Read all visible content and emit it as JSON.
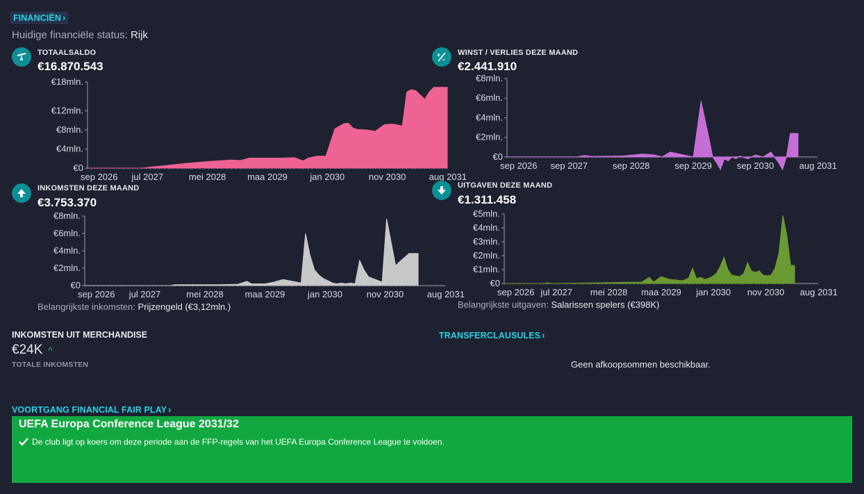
{
  "header": {
    "title": "FINANCIËN"
  },
  "status": {
    "label": "Huidige financiële status:",
    "value": "Rijk"
  },
  "colors": {
    "balance": "#ef6394",
    "profit": "#c36fd6",
    "income": "#c8c8c8",
    "expenses": "#6a9a32",
    "accent": "#27d3e8",
    "ffp_box": "#11a841"
  },
  "panels": {
    "balance": {
      "label": "TOTAALSALDO",
      "value": "€16.870.543",
      "icon": "scale-icon"
    },
    "profit": {
      "label": "WINST / VERLIES DEZE MAAND",
      "value": "€2.441.910",
      "icon": "plus-minus-icon"
    },
    "income": {
      "label": "INKOMSTEN DEZE MAAND",
      "value": "€3.753.370",
      "icon": "arrow-up-icon",
      "sub_label": "Belangrijkste inkomsten:",
      "sub_value": "Prijzengeld (€3,12mln.)"
    },
    "expenses": {
      "label": "UITGAVEN DEZE MAAND",
      "value": "€1.311.458",
      "icon": "arrow-down-icon",
      "sub_label": "Belangrijkste uitgaven:",
      "sub_value": "Salarissen spelers (€398K)"
    }
  },
  "merchandise": {
    "title": "INKOMSTEN UIT MERCHANDISE",
    "value": "€24K",
    "sub": "TOTALE INKOMSTEN"
  },
  "transfer": {
    "title": "TRANSFERCLAUSULES",
    "message": "Geen afkoopsommen beschikbaar."
  },
  "ffp": {
    "title": "VOORTGANG FINANCIAL FAIR PLAY",
    "competition": "UEFA Europa Conference League 2031/32",
    "message": "De club ligt op koers om deze periode aan de FFP-regels van het UEFA Europa Conference League te voldoen."
  },
  "chart_data": [
    {
      "id": "balance",
      "type": "area",
      "unit": "mln. EUR",
      "x_start": "2026-09",
      "x_end": "2031-09",
      "x_ticks": [
        "sep 2026",
        "jul 2027",
        "mei 2028",
        "maa 2029",
        "jan 2030",
        "nov 2030",
        "aug 2031"
      ],
      "y_ticks": [
        "€0",
        "€4mln.",
        "€8mln.",
        "€12mln.",
        "€18mln."
      ],
      "y_tick_values": [
        0,
        4,
        8,
        12,
        18
      ],
      "ylim": [
        0,
        18
      ],
      "x": [
        0,
        12,
        15,
        18,
        22,
        27,
        32,
        34,
        36,
        39,
        43,
        46,
        48,
        49,
        51,
        53,
        55,
        57,
        58,
        59,
        60,
        62,
        64,
        66,
        68,
        70,
        71,
        72,
        73,
        75,
        76,
        77,
        78,
        80
      ],
      "values": [
        0,
        0,
        0.3,
        0.6,
        1.0,
        1.4,
        1.7,
        1.6,
        2.1,
        2.1,
        2.1,
        2.2,
        1.5,
        2.1,
        2.5,
        2.5,
        8.2,
        9.3,
        9.4,
        8.4,
        8.1,
        8.0,
        7.7,
        9.1,
        9.2,
        8.8,
        15.9,
        16.4,
        16.2,
        14.4,
        15.9,
        16.9,
        16.9,
        16.9
      ]
    },
    {
      "id": "profit",
      "type": "area",
      "unit": "mln. EUR",
      "x_start": "2026-09",
      "x_end": "2031-09",
      "x_ticks": [
        "sep 2026",
        "sep 2027",
        "sep 2028",
        "sep 2029",
        "sep 2030",
        "aug 2031"
      ],
      "y_ticks": [
        "€0",
        "€2mln.",
        "€4mln.",
        "€6mln.",
        "€8mln."
      ],
      "y_tick_values": [
        0,
        2,
        4,
        6,
        8
      ],
      "ylim": [
        -1.5,
        8
      ],
      "x": [
        0,
        18,
        20,
        22,
        30,
        35,
        38,
        40,
        42,
        48,
        50,
        52,
        53,
        54,
        55,
        56,
        57,
        58,
        59,
        60,
        62,
        64,
        66,
        68,
        70,
        71,
        72,
        73,
        74,
        75
      ],
      "values": [
        0,
        0,
        0.15,
        0.05,
        0.1,
        0.3,
        0.2,
        0.0,
        0.5,
        0.0,
        5.7,
        2.0,
        0.0,
        -0.6,
        -1.3,
        -0.2,
        -0.4,
        0.0,
        -0.2,
        0.1,
        -0.2,
        0.2,
        0.0,
        0.5,
        -0.6,
        -1.3,
        0.0,
        2.4,
        2.4,
        2.4
      ]
    },
    {
      "id": "income",
      "type": "area",
      "unit": "mln. EUR",
      "x_start": "2026-09",
      "x_end": "2031-09",
      "x_ticks": [
        "sep 2026",
        "jul 2027",
        "mei 2028",
        "maa 2029",
        "jan 2030",
        "nov 2030",
        "aug 2031"
      ],
      "y_ticks": [
        "€0",
        "€2mln.",
        "€4mln.",
        "€6mln.",
        "€8mln."
      ],
      "y_tick_values": [
        0,
        2,
        4,
        6,
        8
      ],
      "ylim": [
        0,
        8
      ],
      "x": [
        0,
        19,
        20,
        26,
        30,
        34,
        36,
        37,
        38,
        40,
        42,
        44,
        46,
        47,
        48,
        49,
        50,
        51,
        52,
        53,
        55,
        56,
        57,
        58,
        59,
        60,
        61,
        62,
        63,
        64,
        65,
        66,
        67,
        68,
        69,
        70,
        72,
        74
      ],
      "values": [
        0,
        0,
        0.1,
        0.1,
        0.1,
        0.15,
        0.5,
        0.2,
        0.2,
        0.2,
        0.4,
        0.7,
        0.5,
        0.4,
        0.3,
        6.0,
        3.5,
        1.8,
        1.2,
        0.8,
        0.3,
        0.2,
        0.3,
        0.2,
        0.3,
        0.2,
        2.9,
        1.8,
        1.0,
        0.8,
        0.6,
        0.4,
        7.7,
        5.0,
        2.3,
        2.8,
        3.7,
        3.7
      ]
    },
    {
      "id": "expenses",
      "type": "area",
      "unit": "mln. EUR",
      "x_start": "2026-09",
      "x_end": "2031-09",
      "x_ticks": [
        "sep 2026",
        "jul 2027",
        "mei 2028",
        "maa 2029",
        "jan 2030",
        "nov 2030",
        "aug 2031"
      ],
      "y_ticks": [
        "€0",
        "€1mln.",
        "€2mln.",
        "€3mln.",
        "€4mln.",
        "€5mln."
      ],
      "y_tick_values": [
        0,
        1,
        2,
        3,
        4,
        5
      ],
      "ylim": [
        0,
        5
      ],
      "x": [
        0,
        10,
        11,
        12,
        24,
        35,
        37,
        38,
        40,
        42,
        44,
        45,
        46,
        47,
        48,
        49,
        50,
        51,
        52,
        53,
        54,
        55,
        56,
        57,
        58,
        59,
        60,
        61,
        62,
        63,
        64,
        65,
        66,
        67,
        68,
        69,
        70,
        71,
        72,
        73,
        74
      ],
      "values": [
        0,
        0,
        0.05,
        0,
        0.05,
        0.1,
        0.45,
        0.1,
        0.5,
        0.3,
        0.25,
        0.2,
        0.25,
        0.4,
        1.1,
        0.35,
        0.45,
        0.3,
        0.35,
        0.5,
        0.7,
        1.2,
        1.9,
        1.0,
        0.6,
        0.55,
        0.5,
        0.7,
        1.5,
        0.9,
        0.8,
        0.9,
        0.6,
        0.55,
        0.6,
        1.1,
        2.2,
        4.9,
        3.5,
        1.3,
        1.3
      ]
    }
  ]
}
